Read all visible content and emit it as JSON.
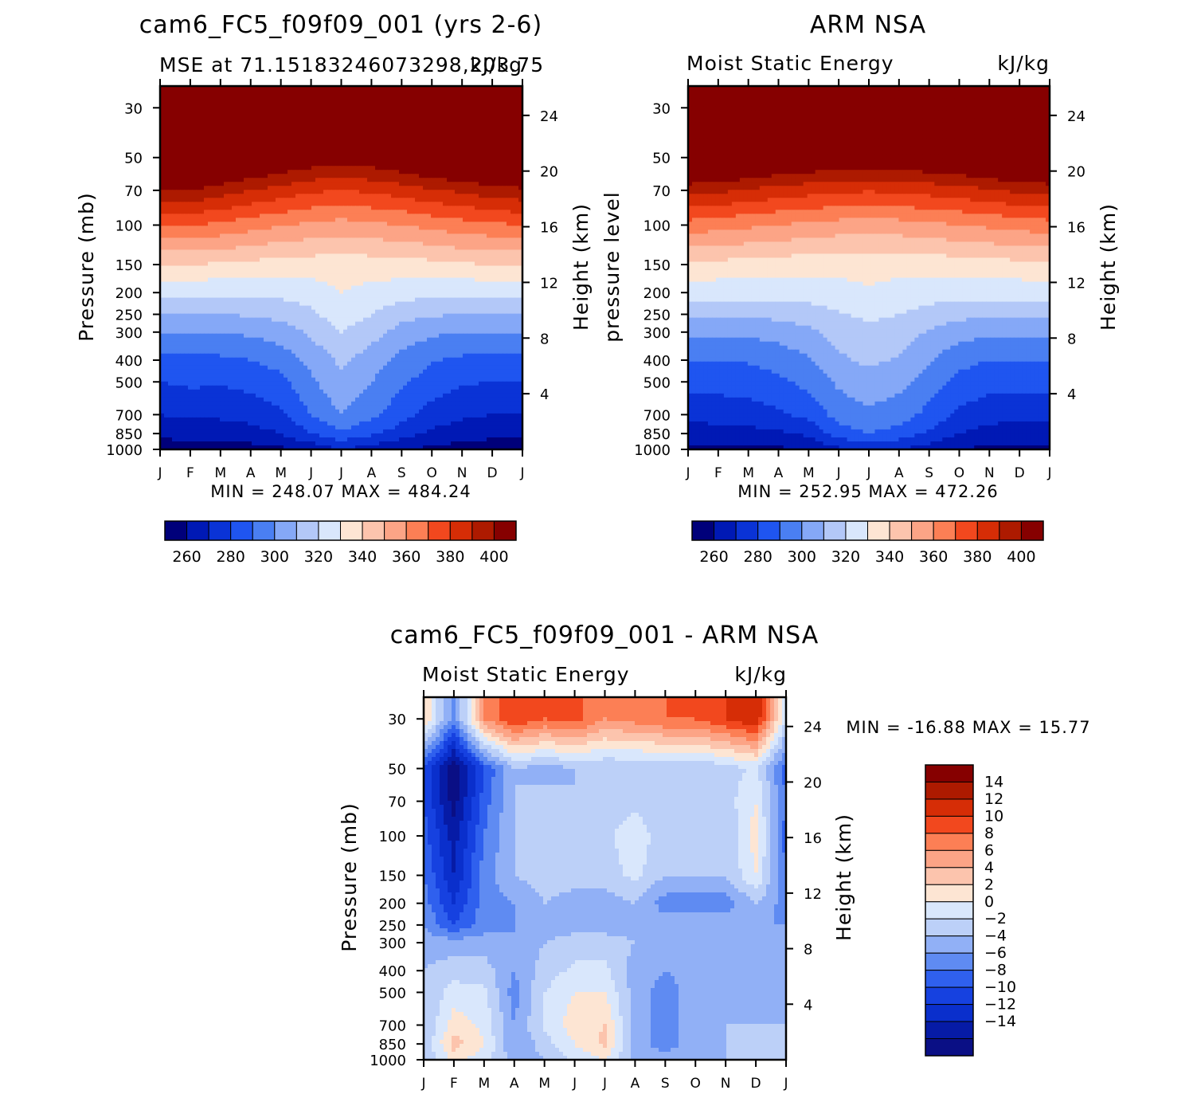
{
  "chart_data": [
    {
      "type": "contour",
      "main_title": "cam6_FC5_f09f09_001 (yrs 2-6)",
      "left_title": "MSE at 71.15183246073298,203.75",
      "right_title": "kJ/kg",
      "ylabel": "Pressure (mb)",
      "ylabel_right": "Height (km)",
      "stats": "MIN = 248.07 MAX = 484.24",
      "x_ticks": [
        "J",
        "F",
        "M",
        "A",
        "M",
        "J",
        "J",
        "A",
        "S",
        "O",
        "N",
        "D",
        "J"
      ],
      "y_ticks": [
        30,
        50,
        70,
        100,
        150,
        200,
        250,
        300,
        400,
        500,
        700,
        850,
        1000
      ],
      "height_ticks": [
        24,
        20,
        16,
        12,
        8,
        4
      ],
      "levels": [
        260,
        270,
        280,
        290,
        300,
        310,
        320,
        330,
        340,
        350,
        360,
        370,
        380,
        390,
        400
      ],
      "colorbar_labels": [
        "260",
        "280",
        "300",
        "320",
        "340",
        "360",
        "380",
        "400"
      ],
      "pressure_grid": [
        1000,
        850,
        700,
        500,
        400,
        300,
        250,
        200,
        150,
        100,
        70,
        50,
        30
      ],
      "values": [
        [
          255,
          256,
          255,
          256,
          258,
          263,
          270,
          265,
          260,
          258,
          256,
          256,
          255
        ],
        [
          262,
          264,
          264,
          266,
          270,
          280,
          288,
          282,
          275,
          268,
          264,
          262,
          262
        ],
        [
          270,
          272,
          272,
          274,
          278,
          290,
          300,
          292,
          284,
          276,
          272,
          270,
          270
        ],
        [
          280,
          282,
          281,
          283,
          287,
          298,
          308,
          300,
          292,
          285,
          281,
          280,
          280
        ],
        [
          288,
          288,
          288,
          290,
          294,
          303,
          312,
          305,
          297,
          291,
          288,
          288,
          288
        ],
        [
          300,
          300,
          300,
          302,
          305,
          312,
          320,
          314,
          306,
          302,
          300,
          300,
          300
        ],
        [
          310,
          310,
          310,
          311,
          313,
          318,
          326,
          320,
          314,
          311,
          310,
          310,
          310
        ],
        [
          322,
          322,
          322,
          322,
          323,
          325,
          330,
          327,
          324,
          323,
          322,
          322,
          322
        ],
        [
          340,
          340,
          339,
          337,
          336,
          335,
          334,
          335,
          336,
          337,
          339,
          340,
          340
        ],
        [
          370,
          370,
          368,
          364,
          361,
          358,
          356,
          358,
          360,
          363,
          366,
          368,
          370
        ],
        [
          398,
          400,
          395,
          390,
          386,
          382,
          380,
          382,
          385,
          389,
          392,
          396,
          398
        ],
        [
          430,
          432,
          425,
          418,
          413,
          408,
          405,
          408,
          412,
          418,
          422,
          426,
          430
        ],
        [
          470,
          472,
          465,
          458,
          452,
          448,
          445,
          448,
          452,
          458,
          463,
          467,
          470
        ]
      ]
    },
    {
      "type": "contour",
      "main_title": "ARM NSA",
      "left_title": "Moist Static Energy",
      "right_title": "kJ/kg",
      "ylabel": "pressure level",
      "ylabel_right": "Height (km)",
      "stats": "MIN = 252.95 MAX = 472.26",
      "x_ticks": [
        "J",
        "F",
        "M",
        "A",
        "M",
        "J",
        "J",
        "A",
        "S",
        "O",
        "N",
        "D",
        "J"
      ],
      "y_ticks": [
        30,
        50,
        70,
        100,
        150,
        200,
        250,
        300,
        400,
        500,
        700,
        850,
        1000
      ],
      "height_ticks": [
        24,
        20,
        16,
        12,
        8,
        4
      ],
      "levels": [
        260,
        270,
        280,
        290,
        300,
        310,
        320,
        330,
        340,
        350,
        360,
        370,
        380,
        390,
        400
      ],
      "colorbar_labels": [
        "260",
        "280",
        "300",
        "320",
        "340",
        "360",
        "380",
        "400"
      ],
      "pressure_grid": [
        1000,
        850,
        700,
        500,
        400,
        300,
        250,
        200,
        150,
        100,
        70,
        50,
        30
      ],
      "values": [
        [
          257,
          258,
          259,
          258,
          262,
          268,
          272,
          270,
          265,
          260,
          258,
          257,
          257
        ],
        [
          265,
          266,
          267,
          268,
          272,
          285,
          290,
          286,
          278,
          270,
          266,
          265,
          265
        ],
        [
          273,
          274,
          275,
          278,
          283,
          294,
          298,
          295,
          287,
          278,
          274,
          273,
          273
        ],
        [
          283,
          284,
          285,
          288,
          293,
          302,
          306,
          303,
          295,
          287,
          284,
          283,
          283
        ],
        [
          290,
          290,
          291,
          294,
          299,
          308,
          312,
          309,
          301,
          293,
          290,
          290,
          290
        ],
        [
          302,
          302,
          302,
          304,
          308,
          314,
          318,
          315,
          309,
          304,
          302,
          302,
          302
        ],
        [
          312,
          312,
          312,
          313,
          315,
          319,
          322,
          320,
          316,
          313,
          312,
          312,
          312
        ],
        [
          324,
          324,
          324,
          324,
          325,
          327,
          329,
          327,
          325,
          324,
          324,
          324,
          324
        ],
        [
          338,
          337,
          336,
          335,
          334,
          333,
          333,
          333,
          334,
          335,
          336,
          337,
          338
        ],
        [
          366,
          364,
          362,
          360,
          358,
          356,
          355,
          356,
          358,
          360,
          362,
          364,
          366
        ],
        [
          394,
          392,
          389,
          386,
          384,
          382,
          381,
          382,
          384,
          386,
          389,
          392,
          394
        ],
        [
          426,
          424,
          420,
          416,
          413,
          411,
          410,
          411,
          413,
          416,
          420,
          424,
          426
        ],
        [
          462,
          460,
          456,
          452,
          449,
          447,
          446,
          447,
          449,
          452,
          456,
          460,
          462
        ]
      ]
    },
    {
      "type": "contour",
      "main_title": "cam6_FC5_f09f09_001 - ARM NSA",
      "left_title": "Moist Static Energy",
      "right_title": "kJ/kg",
      "ylabel": "Pressure (mb)",
      "ylabel_right": "Height (km)",
      "stats": "MIN = -16.88 MAX =  15.77",
      "x_ticks": [
        "J",
        "F",
        "M",
        "A",
        "M",
        "J",
        "J",
        "A",
        "S",
        "O",
        "N",
        "D",
        "J"
      ],
      "y_ticks": [
        30,
        50,
        70,
        100,
        150,
        200,
        250,
        300,
        400,
        500,
        700,
        850,
        1000
      ],
      "height_ticks": [
        24,
        20,
        16,
        12,
        8,
        4
      ],
      "levels": [
        -14,
        -12,
        -10,
        -8,
        -6,
        -4,
        -2,
        0,
        2,
        4,
        6,
        8,
        10,
        12,
        14
      ],
      "colorbar_labels": [
        "14",
        "12",
        "10",
        "8",
        "6",
        "4",
        "2",
        "0",
        "-2",
        "-4",
        "-6",
        "-8",
        "-10",
        "-12",
        "-14"
      ],
      "pressure_grid": [
        1000,
        850,
        700,
        500,
        400,
        300,
        250,
        200,
        150,
        100,
        70,
        50,
        30
      ],
      "values": [
        [
          -2,
          2.5,
          1,
          -3,
          -2,
          0.5,
          2,
          -3,
          -3,
          -3,
          -2,
          -2,
          -2
        ],
        [
          -2,
          5,
          2,
          -4,
          -1,
          2,
          4.5,
          -3,
          -5,
          -3,
          -2,
          -2,
          -2
        ],
        [
          -2,
          3,
          1.5,
          -4,
          0.5,
          3,
          4,
          -3,
          -5,
          -3,
          -2,
          -2,
          -2
        ],
        [
          -2,
          1,
          0.5,
          -5,
          0,
          2,
          2,
          -3,
          -5,
          -3,
          -2,
          -3,
          -2
        ],
        [
          -2,
          -1,
          -1,
          -4,
          -1,
          0.5,
          0.5,
          -3,
          -4,
          -3,
          -2,
          -3,
          -2
        ],
        [
          -3,
          -3,
          -3,
          -4,
          -2,
          -1,
          -1,
          -2,
          -3,
          -3,
          -3,
          -3,
          -3
        ],
        [
          -4,
          -8,
          -5,
          -4,
          -3,
          -3,
          -3,
          -3,
          -3,
          -3,
          -3,
          -4,
          -4
        ],
        [
          -5,
          -10,
          -5,
          -4,
          -2,
          -3,
          -3,
          -2,
          -5,
          -5,
          -5,
          -2,
          -5
        ],
        [
          -6,
          -12,
          -5,
          -2,
          -1,
          -1,
          -1,
          0.5,
          -2,
          -2,
          -2,
          2,
          -6
        ],
        [
          -7,
          -13,
          -6,
          -2,
          -1,
          -1,
          -1,
          2,
          -2,
          -2,
          -2,
          3,
          -7
        ],
        [
          -8,
          -15,
          -7,
          -2,
          -1,
          -2,
          -1,
          -1,
          -2,
          -1,
          -1,
          2,
          -6
        ],
        [
          -8,
          -16,
          -8,
          -2,
          -3,
          -2,
          -2,
          -2,
          -2,
          -2,
          -1,
          0.5,
          -7
        ],
        [
          4,
          -5,
          8,
          12,
          10,
          11,
          8,
          9,
          10,
          10,
          12,
          14,
          0
        ]
      ]
    }
  ]
}
